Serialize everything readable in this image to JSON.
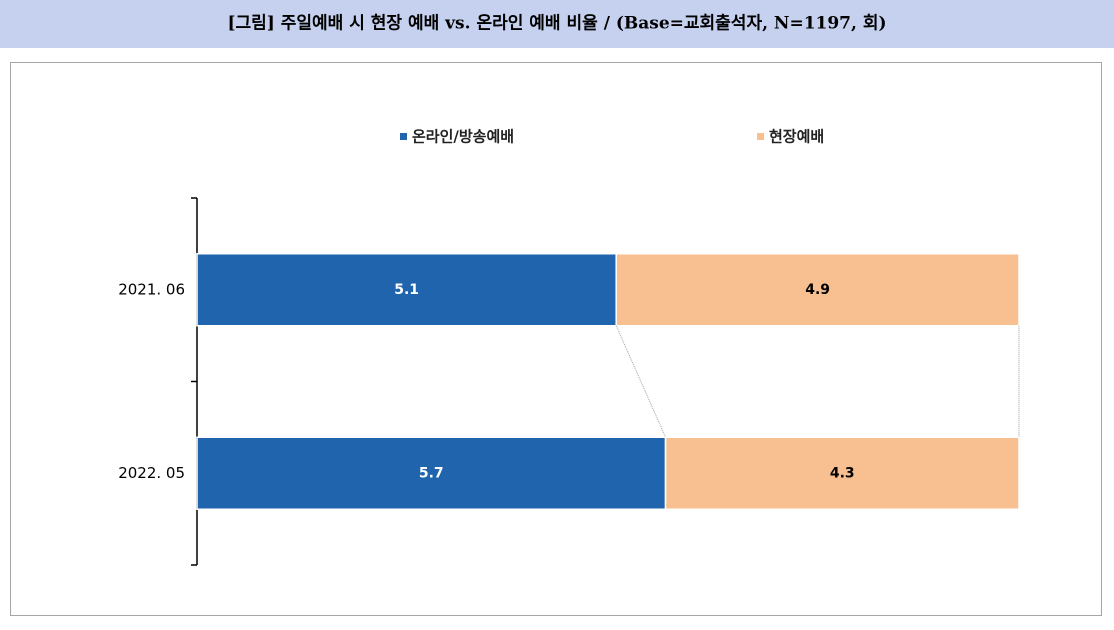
{
  "chart_data": {
    "type": "bar",
    "orientation": "horizontal",
    "stacked": true,
    "title": "[그림] 주일예배 시 현장 예배 vs. 온라인 예배 비율 / (Base=교회출석자, N=1197, 회)",
    "categories": [
      "2021. 06",
      "2022. 05"
    ],
    "series": [
      {
        "name": "온라인/방송예배",
        "color": "#1f64ad",
        "label_color": "#ffffff",
        "values": [
          5.1,
          5.7
        ]
      },
      {
        "name": "현장예배",
        "color": "#f8c090",
        "label_color": "#000000",
        "values": [
          4.9,
          4.3
        ]
      }
    ],
    "data_labels": true,
    "series_lines": true
  }
}
